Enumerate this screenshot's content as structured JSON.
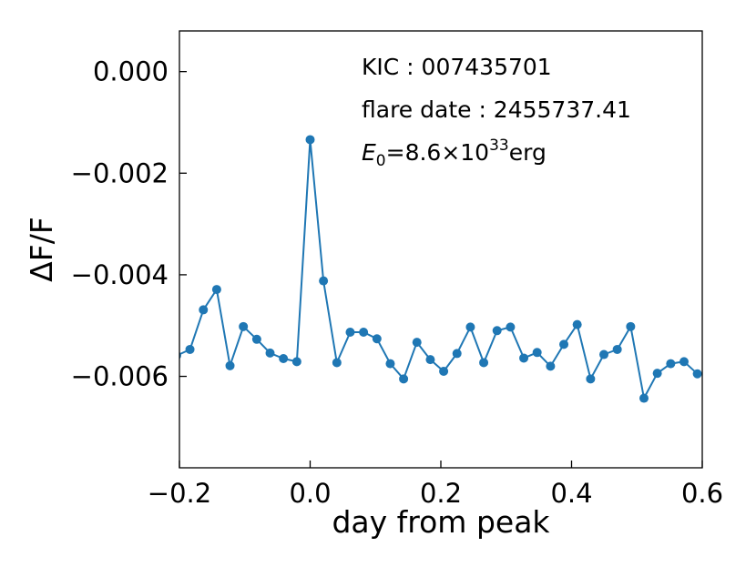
{
  "chart_data": {
    "type": "line",
    "xlabel": "day from peak",
    "ylabel": "ΔF/F",
    "xlim": [
      -0.2,
      0.6
    ],
    "ylim": [
      -0.0078,
      0.0008
    ],
    "xticks": [
      -0.2,
      0.0,
      0.2,
      0.4,
      0.6
    ],
    "xtick_labels": [
      "−0.2",
      "0.0",
      "0.2",
      "0.4",
      "0.6"
    ],
    "yticks": [
      0.0,
      -0.002,
      -0.004,
      -0.006
    ],
    "ytick_labels": [
      "0.000",
      "−0.002",
      "−0.004",
      "−0.006"
    ],
    "grid": false,
    "annotations": {
      "kic": "KIC : 007435701",
      "flare_date": "flare date : 2455737.41",
      "energy_symbol": "E",
      "energy_subscript": "0",
      "energy_mantissa": "=8.6×10",
      "energy_exponent": "33",
      "energy_unit": "erg"
    },
    "series": [
      {
        "color": "#1f77b4",
        "marker": "circle",
        "x": [
          -0.2043,
          -0.1839,
          -0.1634,
          -0.143,
          -0.1226,
          -0.1022,
          -0.0817,
          -0.0613,
          -0.0409,
          -0.0204,
          0.0,
          0.0204,
          0.0409,
          0.0613,
          0.0817,
          0.1022,
          0.1226,
          0.143,
          0.1634,
          0.1839,
          0.2043,
          0.2247,
          0.2452,
          0.2656,
          0.286,
          0.3065,
          0.3269,
          0.3473,
          0.3678,
          0.3882,
          0.4086,
          0.4291,
          0.4495,
          0.4699,
          0.4904,
          0.5108,
          0.5312,
          0.5517,
          0.5721,
          0.5925
        ],
        "y": [
          -0.00559,
          -0.00547,
          -0.00469,
          -0.00429,
          -0.00579,
          -0.00502,
          -0.00527,
          -0.00554,
          -0.00565,
          -0.00571,
          -0.00134,
          -0.00412,
          -0.00573,
          -0.00513,
          -0.00513,
          -0.00526,
          -0.00575,
          -0.00605,
          -0.00533,
          -0.00567,
          -0.0059,
          -0.00555,
          -0.00503,
          -0.00573,
          -0.0051,
          -0.00503,
          -0.00564,
          -0.00553,
          -0.0058,
          -0.00537,
          -0.00498,
          -0.00605,
          -0.00557,
          -0.00547,
          -0.00502,
          -0.00643,
          -0.00594,
          -0.00575,
          -0.00571,
          -0.00595
        ]
      }
    ]
  }
}
